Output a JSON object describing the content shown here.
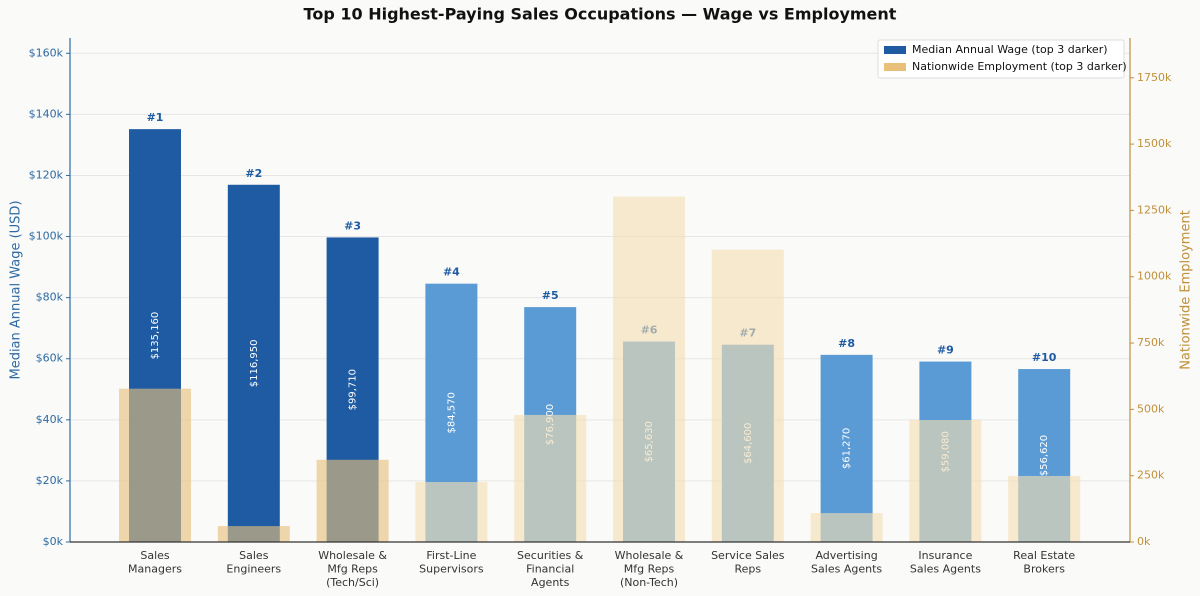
{
  "chart_data": {
    "type": "bar",
    "title": "Top 10 Highest-Paying Sales Occupations — Wage vs Employment",
    "categories": [
      [
        "Sales",
        "Managers"
      ],
      [
        "Sales",
        "Engineers"
      ],
      [
        "Wholesale &",
        "Mfg Reps",
        "(Tech/Sci)"
      ],
      [
        "First-Line",
        "Supervisors"
      ],
      [
        "Securities &",
        "Financial",
        "Agents"
      ],
      [
        "Wholesale &",
        "Mfg Reps",
        "(Non-Tech)"
      ],
      [
        "Service Sales",
        "Reps"
      ],
      [
        "Advertising",
        "Sales Agents"
      ],
      [
        "Insurance",
        "Sales Agents"
      ],
      [
        "Real Estate",
        "Brokers"
      ]
    ],
    "rank_labels": [
      "#1",
      "#2",
      "#3",
      "#4",
      "#5",
      "#6",
      "#7",
      "#8",
      "#9",
      "#10"
    ],
    "series": [
      {
        "name": "Median Annual Wage (top 3 darker)",
        "color": "#1f5ba3",
        "colors": [
          "#1f5ba3",
          "#1f5ba3",
          "#1f5ba3",
          "#5b9bd5",
          "#5b9bd5",
          "#5b9bd5",
          "#5b9bd5",
          "#5b9bd5",
          "#5b9bd5",
          "#5b9bd5"
        ],
        "values": [
          135160,
          116950,
          99710,
          84570,
          76900,
          65630,
          64600,
          61270,
          59080,
          56620
        ],
        "value_labels": [
          "$135,160",
          "$116,950",
          "$99,710",
          "$84,570",
          "$76,900",
          "$65,630",
          "$64,600",
          "$61,270",
          "$59,080",
          "$56,620"
        ]
      },
      {
        "name": "Nationwide Employment (top 3 darker)",
        "color": "#e8c07a",
        "axis": "y2",
        "colors": [
          "#e8c07a",
          "#e8c07a",
          "#e8c07a",
          "#f5dfb3",
          "#f5dfb3",
          "#f5dfb3",
          "#f5dfb3",
          "#f5dfb3",
          "#f5dfb3",
          "#f5dfb3"
        ],
        "values": [
          578000,
          60000,
          310000,
          226000,
          479000,
          1302000,
          1102000,
          109000,
          460000,
          249000
        ]
      }
    ],
    "ylabel": "Median Annual Wage (USD)",
    "y2label": "Nationwide Employment",
    "ylim": [
      0,
      165000
    ],
    "yticks": [
      {
        "value": 0,
        "label": "$0k"
      },
      {
        "value": 20000,
        "label": "$20k"
      },
      {
        "value": 40000,
        "label": "$40k"
      },
      {
        "value": 60000,
        "label": "$60k"
      },
      {
        "value": 80000,
        "label": "$80k"
      },
      {
        "value": 100000,
        "label": "$100k"
      },
      {
        "value": 120000,
        "label": "$120k"
      },
      {
        "value": 140000,
        "label": "$140k"
      },
      {
        "value": 160000,
        "label": "$160k"
      }
    ],
    "y2lim": [
      0,
      1900000
    ],
    "y2ticks": [
      {
        "value": 0,
        "label": "0k"
      },
      {
        "value": 250000,
        "label": "250k"
      },
      {
        "value": 500000,
        "label": "500k"
      },
      {
        "value": 750000,
        "label": "750k"
      },
      {
        "value": 1000000,
        "label": "1000k"
      },
      {
        "value": 1250000,
        "label": "1250k"
      },
      {
        "value": 1500000,
        "label": "1500k"
      },
      {
        "value": 1750000,
        "label": "1750k"
      }
    ],
    "grid": true,
    "legend": "upper right"
  }
}
